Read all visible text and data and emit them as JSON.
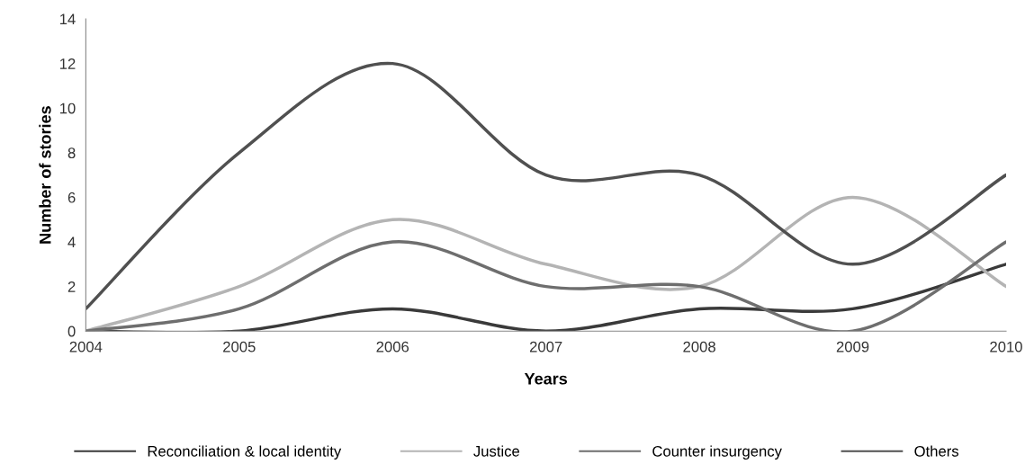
{
  "chart_data": {
    "type": "line",
    "xlabel": "Years",
    "ylabel": "Number of stories",
    "categories": [
      "2004",
      "2005",
      "2006",
      "2007",
      "2008",
      "2009",
      "2010"
    ],
    "series": [
      {
        "name": "Reconciliation & local identity",
        "color": "#3a3a3a",
        "values": [
          0,
          0,
          1,
          0,
          1,
          1,
          3
        ]
      },
      {
        "name": "Justice",
        "color": "#b4b4b4",
        "values": [
          0,
          2,
          5,
          3,
          2,
          6,
          2
        ]
      },
      {
        "name": "Counter insurgency",
        "color": "#6e6e6e",
        "values": [
          0,
          1,
          4,
          2,
          2,
          0,
          4
        ]
      },
      {
        "name": "Others",
        "color": "#505050",
        "values": [
          1,
          8,
          12,
          7,
          7,
          3,
          7
        ]
      }
    ],
    "ylim": [
      0,
      14
    ],
    "yticks": [
      0,
      2,
      4,
      6,
      8,
      10,
      12,
      14
    ],
    "grid": false,
    "legend": "bottom",
    "marker": "none",
    "line_style": "solid"
  }
}
